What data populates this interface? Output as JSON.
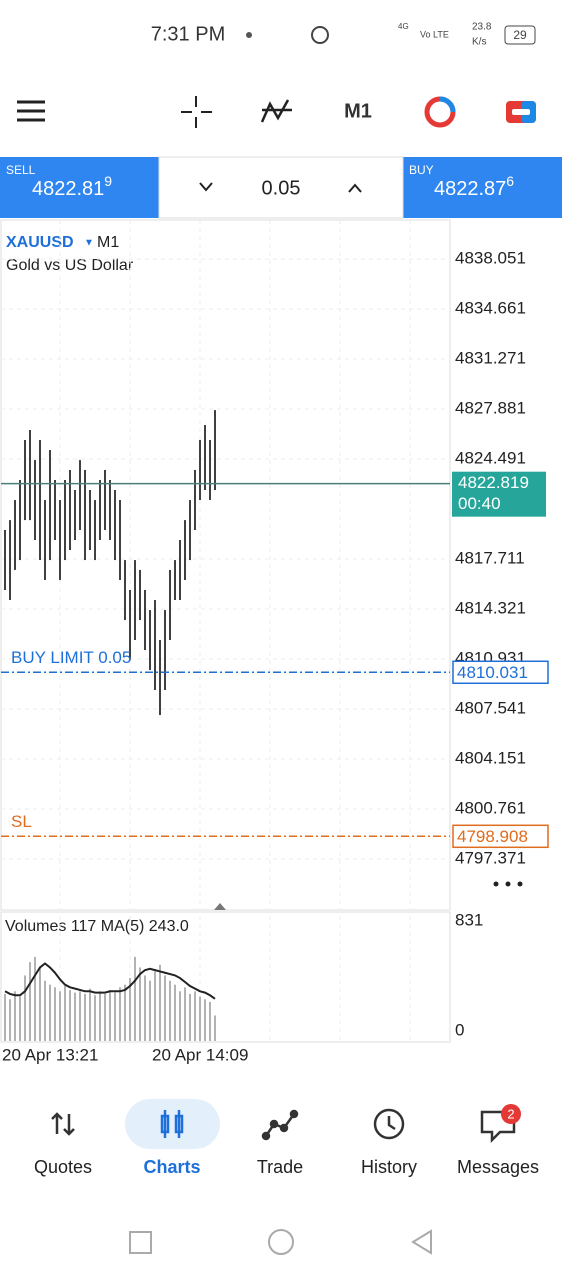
{
  "status_bar": {
    "time": "7:31 PM",
    "net_4g": "4G",
    "volte": "Vo LTE",
    "speed": "23.8",
    "speed_unit": "K/s",
    "battery": "29"
  },
  "toolbar": {
    "timeframe": "M1"
  },
  "trade_panel": {
    "sell_label": "SELL",
    "sell_price": "4822.81",
    "sell_price_sup": "9",
    "lot": "0.05",
    "buy_label": "BUY",
    "buy_price": "4822.87",
    "buy_price_sup": "6"
  },
  "chart_data": {
    "type": "ohlc",
    "symbol": "XAUUSD",
    "timeframe": "M1",
    "description": "Gold vs US Dollar",
    "color": "#000000",
    "ylim": [
      4793.91,
      4840.7
    ],
    "yticks": [
      4838.051,
      4834.661,
      4831.271,
      4827.881,
      4824.491,
      4817.711,
      4814.321,
      4810.931,
      4807.541,
      4804.151,
      4800.761,
      4797.371
    ],
    "high": [
      4819.68,
      4820.35,
      4821.71,
      4823.07,
      4825.78,
      4826.46,
      4824.42,
      4825.78,
      4821.71,
      4825.1,
      4823.07,
      4821.71,
      4823.07,
      4823.75,
      4822.39,
      4824.42,
      4823.75,
      4822.39,
      4821.71,
      4823.07,
      4823.75,
      4823.07,
      4822.39,
      4821.71,
      4817.64,
      4815.61,
      4817.64,
      4816.97,
      4815.61,
      4814.25,
      4814.93,
      4812.22,
      4814.25,
      4816.97,
      4817.64,
      4819.0,
      4820.35,
      4821.71,
      4823.75,
      4825.78,
      4826.8,
      4825.78,
      4827.81
    ],
    "low": [
      4815.61,
      4814.93,
      4816.97,
      4817.64,
      4820.35,
      4820.35,
      4819.0,
      4817.64,
      4816.29,
      4817.64,
      4819.0,
      4816.29,
      4817.64,
      4818.32,
      4819.0,
      4819.68,
      4817.64,
      4818.32,
      4817.64,
      4819.0,
      4819.68,
      4819.0,
      4817.64,
      4816.29,
      4813.57,
      4810.86,
      4812.22,
      4813.57,
      4811.54,
      4810.18,
      4808.83,
      4807.13,
      4808.83,
      4812.22,
      4814.93,
      4814.93,
      4816.29,
      4817.64,
      4819.68,
      4821.71,
      4822.39,
      4821.71,
      4822.39
    ],
    "current_price": {
      "value": 4822.819,
      "timer": "00:40",
      "color": "#26a69a"
    },
    "orders": [
      {
        "label": "BUY LIMIT 0.05",
        "value": 4810.031,
        "color": "#1e6fd9"
      },
      {
        "label": "SL",
        "value": 4798.908,
        "color": "#e06c1e"
      }
    ],
    "volume": {
      "title": "Volumes 117 MA(5) 243.0",
      "ylim": [
        0,
        831
      ],
      "yticks": [
        0,
        831
      ],
      "color": "#999999",
      "values": [
        280,
        240,
        300,
        260,
        420,
        520,
        560,
        480,
        380,
        350,
        330,
        300,
        340,
        310,
        290,
        300,
        280,
        320,
        270,
        300,
        280,
        310,
        290,
        330,
        350,
        400,
        560,
        480,
        420,
        380,
        450,
        500,
        420,
        380,
        350,
        300,
        330,
        280,
        300,
        260,
        240,
        220,
        117
      ],
      "ma": [
        300,
        280,
        270,
        270,
        300,
        360,
        420,
        480,
        510,
        480,
        440,
        390,
        350,
        330,
        320,
        310,
        300,
        300,
        290,
        290,
        290,
        300,
        300,
        300,
        310,
        340,
        380,
        430,
        460,
        470,
        460,
        450,
        440,
        430,
        420,
        400,
        370,
        340,
        320,
        300,
        290,
        270,
        243
      ]
    },
    "x_labels": [
      "20 Apr 13:21",
      "20 Apr 14:09"
    ]
  },
  "nav": {
    "items": [
      "Quotes",
      "Charts",
      "Trade",
      "History",
      "Messages"
    ],
    "badge": "2"
  }
}
